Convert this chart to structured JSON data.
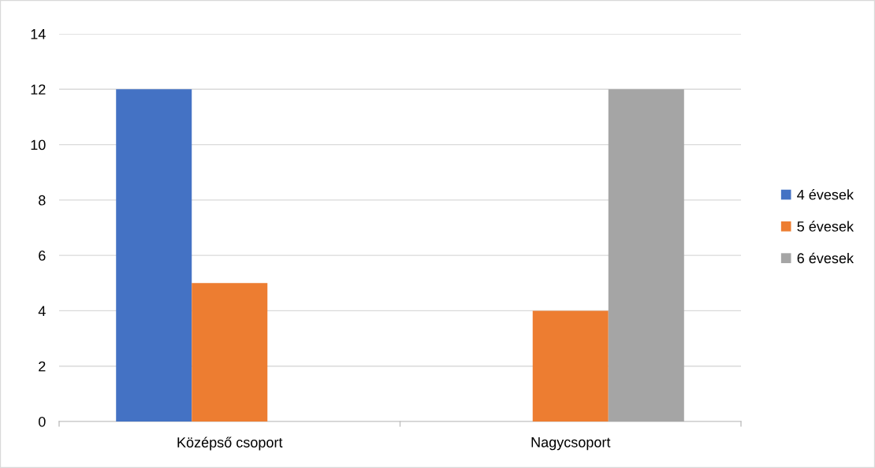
{
  "chart_data": {
    "type": "bar",
    "categories": [
      "Középső csoport",
      "Nagycsoport"
    ],
    "series": [
      {
        "name": "4 évesek",
        "color": "#4472c4",
        "values": [
          12,
          null
        ]
      },
      {
        "name": "5 évesek",
        "color": "#ed7d31",
        "values": [
          5,
          4
        ]
      },
      {
        "name": "6 évesek",
        "color": "#a5a5a5",
        "values": [
          null,
          12
        ]
      }
    ],
    "ylim": [
      0,
      14
    ],
    "yticks": [
      0,
      2,
      4,
      6,
      8,
      10,
      12,
      14
    ],
    "grid": "y",
    "legend": "right"
  }
}
